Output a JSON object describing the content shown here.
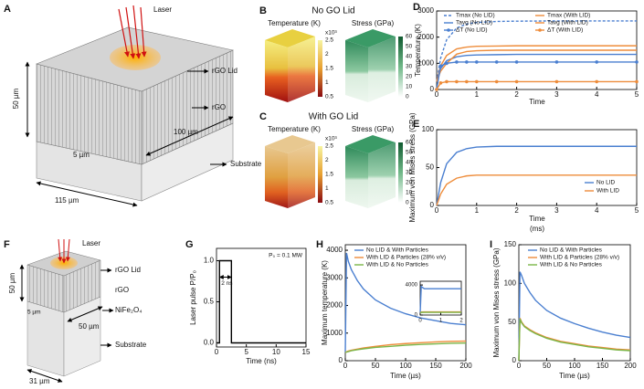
{
  "diagram_A": {
    "panel": "A",
    "laser": "Laser",
    "lid": "rGO Lid",
    "rgo": "rGO",
    "substrate": "Substrate",
    "dims": [
      "50 µm",
      "5 µm",
      "100 µm",
      "115 µm"
    ]
  },
  "simulations": [
    {
      "panel": "B",
      "title": "No GO Lid",
      "temperature_label": "Temperature (K)",
      "stress_label": "Stress (GPa)"
    },
    {
      "panel": "C",
      "title": "With GO Lid",
      "temperature_label": "Temperature (K)",
      "stress_label": "Stress (GPa)"
    }
  ],
  "temperature_scale": {
    "multiplier": "x10³",
    "ticks": [
      2.5,
      2,
      1.5,
      1,
      0.5
    ]
  },
  "stress_scale": {
    "ticks": [
      60,
      50,
      40,
      30,
      20,
      10,
      0
    ]
  },
  "diagram_F": {
    "panel": "F",
    "laser": "Laser",
    "lid": "rGO Lid",
    "rgo": "rGO",
    "particles": "NiFe₂O₄",
    "substrate": "Substrate",
    "dims": [
      "50 µm",
      "5 µm",
      "50 µm",
      "31 µm"
    ]
  },
  "chart_data": [
    {
      "type": "line",
      "panel": "D",
      "x_label": "Time",
      "y_label": "Temperature (K)",
      "x": [
        0,
        0.1,
        0.25,
        0.5,
        0.75,
        1,
        1.5,
        2,
        3,
        4,
        5
      ],
      "xlim": [
        0,
        5
      ],
      "xticks": [
        0,
        1,
        2,
        3,
        4,
        5
      ],
      "ylim": [
        0,
        3000
      ],
      "yticks": [
        0,
        1000,
        2000,
        3000
      ],
      "legend": "top",
      "series": [
        {
          "name": "Tmax (No LID)",
          "color": "#4a7fd0",
          "line_style": "dashed",
          "values": [
            300,
            1200,
            1900,
            2350,
            2500,
            2560,
            2600,
            2610,
            2620,
            2620,
            2620
          ]
        },
        {
          "name": "Tmax (With LID)",
          "color": "#ee8c3a",
          "line_style": "solid",
          "values": [
            300,
            900,
            1300,
            1550,
            1620,
            1650,
            1660,
            1670,
            1670,
            1670,
            1670
          ]
        },
        {
          "name": "Tavg (No LID)",
          "color": "#4a7fd0",
          "line_style": "solid",
          "values": [
            300,
            800,
            1100,
            1250,
            1300,
            1320,
            1330,
            1340,
            1340,
            1340,
            1340
          ]
        },
        {
          "name": "Tavg (With LID)",
          "color": "#ee8c3a",
          "line_style": "solid",
          "values": [
            300,
            700,
            1000,
            1350,
            1450,
            1480,
            1500,
            1500,
            1500,
            1500,
            1500
          ]
        },
        {
          "name": "ΔT (No LID)",
          "color": "#4a7fd0",
          "line_style": "marker",
          "values": [
            0,
            900,
            1000,
            1050,
            1050,
            1050,
            1050,
            1050,
            1050,
            1050,
            1050
          ]
        },
        {
          "name": "ΔT (With LID)",
          "color": "#ee8c3a",
          "line_style": "marker",
          "values": [
            0,
            250,
            300,
            300,
            300,
            300,
            300,
            300,
            300,
            300,
            300
          ]
        }
      ]
    },
    {
      "type": "line",
      "panel": "E",
      "x_label": "Time",
      "x_unit": "(ms)",
      "y_label": "Maximum von Mises stress (GPa)",
      "x": [
        0,
        0.1,
        0.25,
        0.5,
        0.75,
        1,
        1.5,
        2,
        3,
        4,
        5
      ],
      "xlim": [
        0,
        5
      ],
      "xticks": [
        0,
        1,
        2,
        3,
        4,
        5
      ],
      "ylim": [
        0,
        100
      ],
      "yticks": [
        0,
        50,
        100
      ],
      "legend": "bottom-right",
      "series": [
        {
          "name": "No LID",
          "color": "#4a7fd0",
          "line_style": "solid",
          "values": [
            0,
            30,
            55,
            70,
            75,
            77,
            78,
            78,
            78,
            78,
            78
          ]
        },
        {
          "name": "With LID",
          "color": "#ee8c3a",
          "line_style": "solid",
          "values": [
            0,
            15,
            28,
            36,
            39,
            40,
            40,
            40,
            40,
            40,
            40
          ]
        }
      ]
    },
    {
      "type": "line",
      "panel": "G",
      "x_label": "Time (ns)",
      "y_label": "Laser pulse P/P₀",
      "annotations": [
        "2 ns",
        "P₀ = 0.1 MW"
      ],
      "x": [
        0,
        0.5,
        0.5,
        2.5,
        2.5,
        15
      ],
      "values": [
        0,
        0,
        1,
        1,
        0,
        0
      ],
      "color": "#000000",
      "xlim": [
        0,
        15
      ],
      "xticks": [
        0,
        5,
        10,
        15
      ],
      "ylim": [
        -0.05,
        1.15
      ],
      "yticks": [
        {
          "value": 0,
          "label": "0.0"
        },
        {
          "value": 0.5,
          "label": "0.5"
        },
        {
          "value": 1,
          "label": "1.0"
        }
      ]
    },
    {
      "type": "line",
      "panel": "H",
      "x_label": "Time (µs)",
      "y_label": "Maximum temperature (K)",
      "x": [
        0,
        2,
        5,
        10,
        20,
        30,
        50,
        75,
        100,
        125,
        150,
        175,
        200
      ],
      "xlim": [
        0,
        200
      ],
      "xticks": [
        0,
        50,
        100,
        150,
        200
      ],
      "ylim": [
        0,
        4200
      ],
      "yticks": [
        0,
        1000,
        2000,
        3000,
        4000
      ],
      "legend": "top",
      "series": [
        {
          "name": "No LID & With Particles",
          "color": "#4a7fd0",
          "line_style": "solid",
          "values": [
            300,
            3900,
            3600,
            3300,
            2900,
            2600,
            2200,
            1900,
            1700,
            1550,
            1450,
            1350,
            1300
          ]
        },
        {
          "name": "With LID & Particles (28% v/v)",
          "color": "#ee8c3a",
          "line_style": "solid",
          "values": [
            300,
            320,
            350,
            380,
            420,
            460,
            520,
            580,
            620,
            650,
            680,
            700,
            710
          ]
        },
        {
          "name": "With LID & No Particles",
          "color": "#7ab648",
          "line_style": "solid",
          "values": [
            300,
            310,
            330,
            360,
            400,
            430,
            480,
            520,
            560,
            590,
            610,
            630,
            640
          ]
        }
      ]
    },
    {
      "type": "line",
      "x": [
        0,
        0.05,
        0.2,
        0.5,
        1,
        1.5,
        2
      ],
      "xlim": [
        0,
        2
      ],
      "xticks": [
        0,
        1,
        2
      ],
      "ylim": [
        0,
        4500
      ],
      "yticks": [
        0,
        4000
      ],
      "series": [
        {
          "color": "#4a7fd0",
          "line_style": "solid",
          "values": [
            300,
            3800,
            3500,
            3500,
            3500,
            3500,
            3500
          ]
        },
        {
          "color": "#ee8c3a",
          "line_style": "solid",
          "values": [
            300,
            400,
            420,
            420,
            420,
            420,
            420
          ]
        },
        {
          "color": "#7ab648",
          "line_style": "solid",
          "values": [
            300,
            350,
            360,
            360,
            360,
            360,
            360
          ]
        }
      ]
    },
    {
      "type": "line",
      "panel": "I",
      "x_label": "Time (µs)",
      "y_label": "Maximum von Mises stress (GPa)",
      "x": [
        0,
        2,
        5,
        10,
        20,
        30,
        50,
        75,
        100,
        125,
        150,
        175,
        200
      ],
      "xlim": [
        0,
        200
      ],
      "xticks": [
        0,
        50,
        100,
        150,
        200
      ],
      "ylim": [
        0,
        150
      ],
      "yticks": [
        0,
        50,
        100,
        150
      ],
      "legend": "top",
      "series": [
        {
          "name": "No LID & With Particles",
          "color": "#4a7fd0",
          "line_style": "solid",
          "values": [
            0,
            115,
            110,
            100,
            88,
            78,
            65,
            55,
            48,
            42,
            37,
            33,
            30
          ]
        },
        {
          "name": "With LID & Particles (28% v/v)",
          "color": "#ee8c3a",
          "line_style": "solid",
          "values": [
            0,
            55,
            50,
            45,
            40,
            36,
            30,
            25,
            22,
            19,
            17,
            15,
            14
          ]
        },
        {
          "name": "With LID & No Particles",
          "color": "#7ab648",
          "line_style": "solid",
          "values": [
            0,
            54,
            49,
            44,
            39,
            35,
            29,
            24,
            21,
            18,
            16,
            14,
            13
          ]
        }
      ]
    }
  ]
}
